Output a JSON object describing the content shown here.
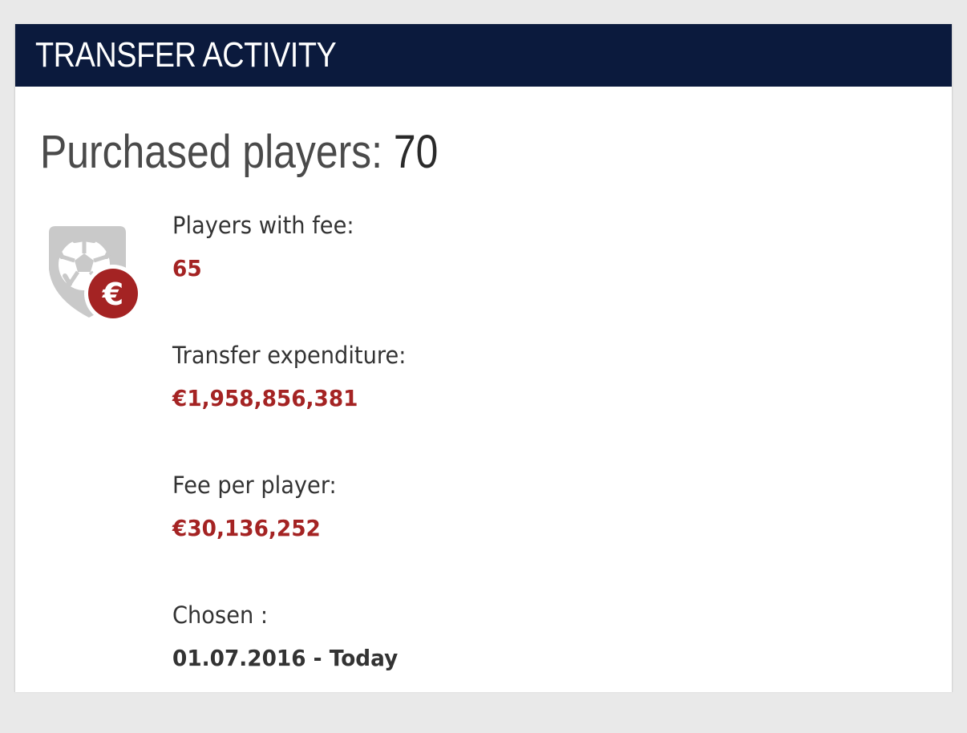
{
  "header": {
    "title": "TRANSFER ACTIVITY"
  },
  "summary": {
    "label": "Purchased players: ",
    "count": "70"
  },
  "icon": {
    "name": "shield-ball-euro-icon",
    "badge_glyph": "€",
    "badge_color": "#a42323",
    "shield_color": "#c9c9c9"
  },
  "stats": [
    {
      "label": "Players with fee:",
      "value": "65"
    },
    {
      "label": "Transfer expenditure:",
      "value": "€1,958,856,381"
    },
    {
      "label": "Fee per player:",
      "value": "€30,136,252"
    },
    {
      "label": "Chosen :",
      "value": "01.07.2016 - Today"
    }
  ],
  "colors": {
    "header_bg": "#0b1a3d",
    "value_red": "#a42323",
    "text": "#333333"
  }
}
